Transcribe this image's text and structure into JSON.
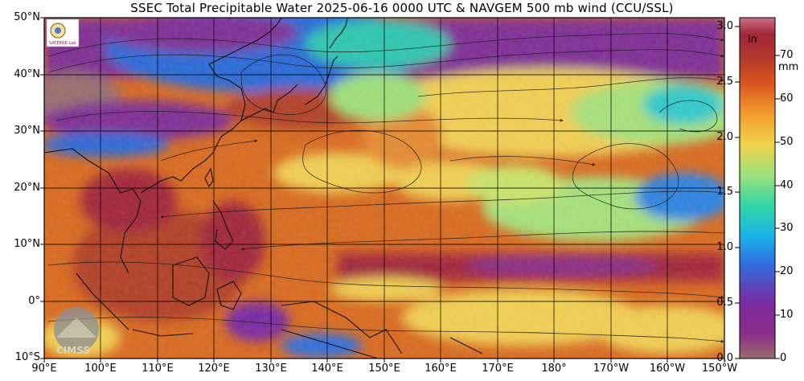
{
  "title": "SSEC Total Precipitable Water  2025-06-16 0000 UTC & NAVGEM 500 mb wind (CCU/SSL)",
  "lat_labels": [
    "50°N",
    "40°N",
    "30°N",
    "20°N",
    "10°N",
    "0°",
    "10°S"
  ],
  "lon_labels": [
    "90°E",
    "100°E",
    "110°E",
    "120°E",
    "130°E",
    "140°E",
    "150°E",
    "160°E",
    "170°E",
    "180°",
    "170°W",
    "160°W",
    "150°W"
  ],
  "colorbar": {
    "units_in": "in",
    "units_mm": "mm",
    "in_ticks": [
      "3.0",
      "2.5",
      "2.0",
      "1.5",
      "1.0",
      "0.5",
      "0.0"
    ],
    "mm_ticks": [
      "70",
      "60",
      "50",
      "40",
      "30",
      "20",
      "10",
      "0"
    ],
    "colors": [
      "#9a6e6e",
      "#8a2f86",
      "#7a2aa0",
      "#2f6fe0",
      "#19b4e6",
      "#33d6a5",
      "#9fe07a",
      "#f2d24a",
      "#f29a2e",
      "#d9531e",
      "#b33a2a",
      "#a2253a",
      "#cc6f86"
    ]
  },
  "logos": {
    "ccu_ssl_text": "SATERNE Lab",
    "cimss_text": "CIMSS"
  }
}
